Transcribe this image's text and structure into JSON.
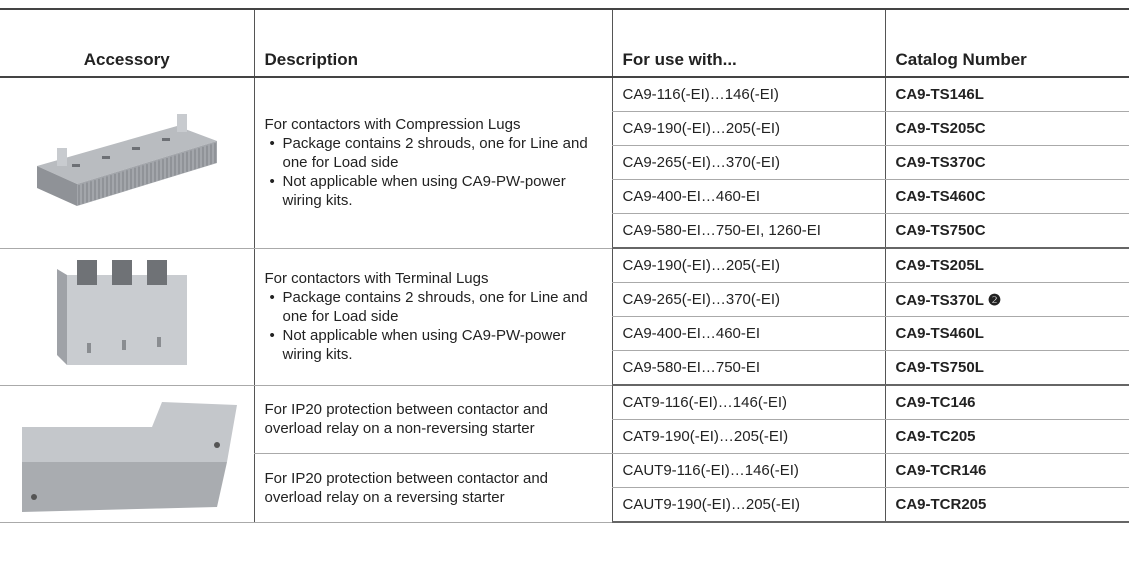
{
  "table": {
    "header": [
      "Accessory",
      "Description",
      "For use with...",
      "Catalog Number"
    ],
    "groups": [
      {
        "descriptions": [
          {
            "text": "For contactors with Compression Lugs",
            "bullets": [
              "Package contains 2 shrouds, one for Line and one for Load side",
              "Not applicable when using CA9-PW-power wiring kits."
            ],
            "rows": [
              {
                "use_with": "CA9-116(-EI)…146(-EI)",
                "catalog_number": "CA9-TS146L"
              },
              {
                "use_with": "CA9-190(-EI)…205(-EI)",
                "catalog_number": "CA9-TS205C"
              },
              {
                "use_with": "CA9-265(-EI)…370(-EI)",
                "catalog_number": "CA9-TS370C"
              },
              {
                "use_with": "CA9-400-EI…460-EI",
                "catalog_number": "CA9-TS460C"
              },
              {
                "use_with": "CA9-580-EI…750-EI, 1260-EI",
                "catalog_number": "CA9-TS750C"
              }
            ]
          }
        ]
      },
      {
        "descriptions": [
          {
            "text": "For contactors with Terminal Lugs",
            "bullets": [
              "Package contains 2 shrouds, one for Line and one for Load side",
              "Not applicable when using CA9-PW-power wiring kits."
            ],
            "rows": [
              {
                "use_with": "CA9-190(-EI)…205(-EI)",
                "catalog_number": "CA9-TS205L"
              },
              {
                "use_with": "CA9-265(-EI)…370(-EI)",
                "catalog_number": "CA9-TS370L ❷"
              },
              {
                "use_with": "CA9-400-EI…460-EI",
                "catalog_number": "CA9-TS460L"
              },
              {
                "use_with": "CA9-580-EI…750-EI",
                "catalog_number": "CA9-TS750L"
              }
            ]
          }
        ]
      },
      {
        "descriptions": [
          {
            "text": "For IP20 protection between contactor and overload relay on a non-reversing starter",
            "bullets": [],
            "rows": [
              {
                "use_with": "CAT9-116(-EI)…146(-EI)",
                "catalog_number": "CA9-TC146"
              },
              {
                "use_with": "CAT9-190(-EI)…205(-EI)",
                "catalog_number": "CA9-TC205"
              }
            ]
          },
          {
            "text": "For IP20 protection between contactor and overload relay on a reversing starter",
            "bullets": [],
            "rows": [
              {
                "use_with": "CAUT9-116(-EI)…146(-EI)",
                "catalog_number": "CA9-TCR146"
              },
              {
                "use_with": "CAUT9-190(-EI)…205(-EI)",
                "catalog_number": "CA9-TCR205"
              }
            ]
          }
        ]
      }
    ]
  }
}
